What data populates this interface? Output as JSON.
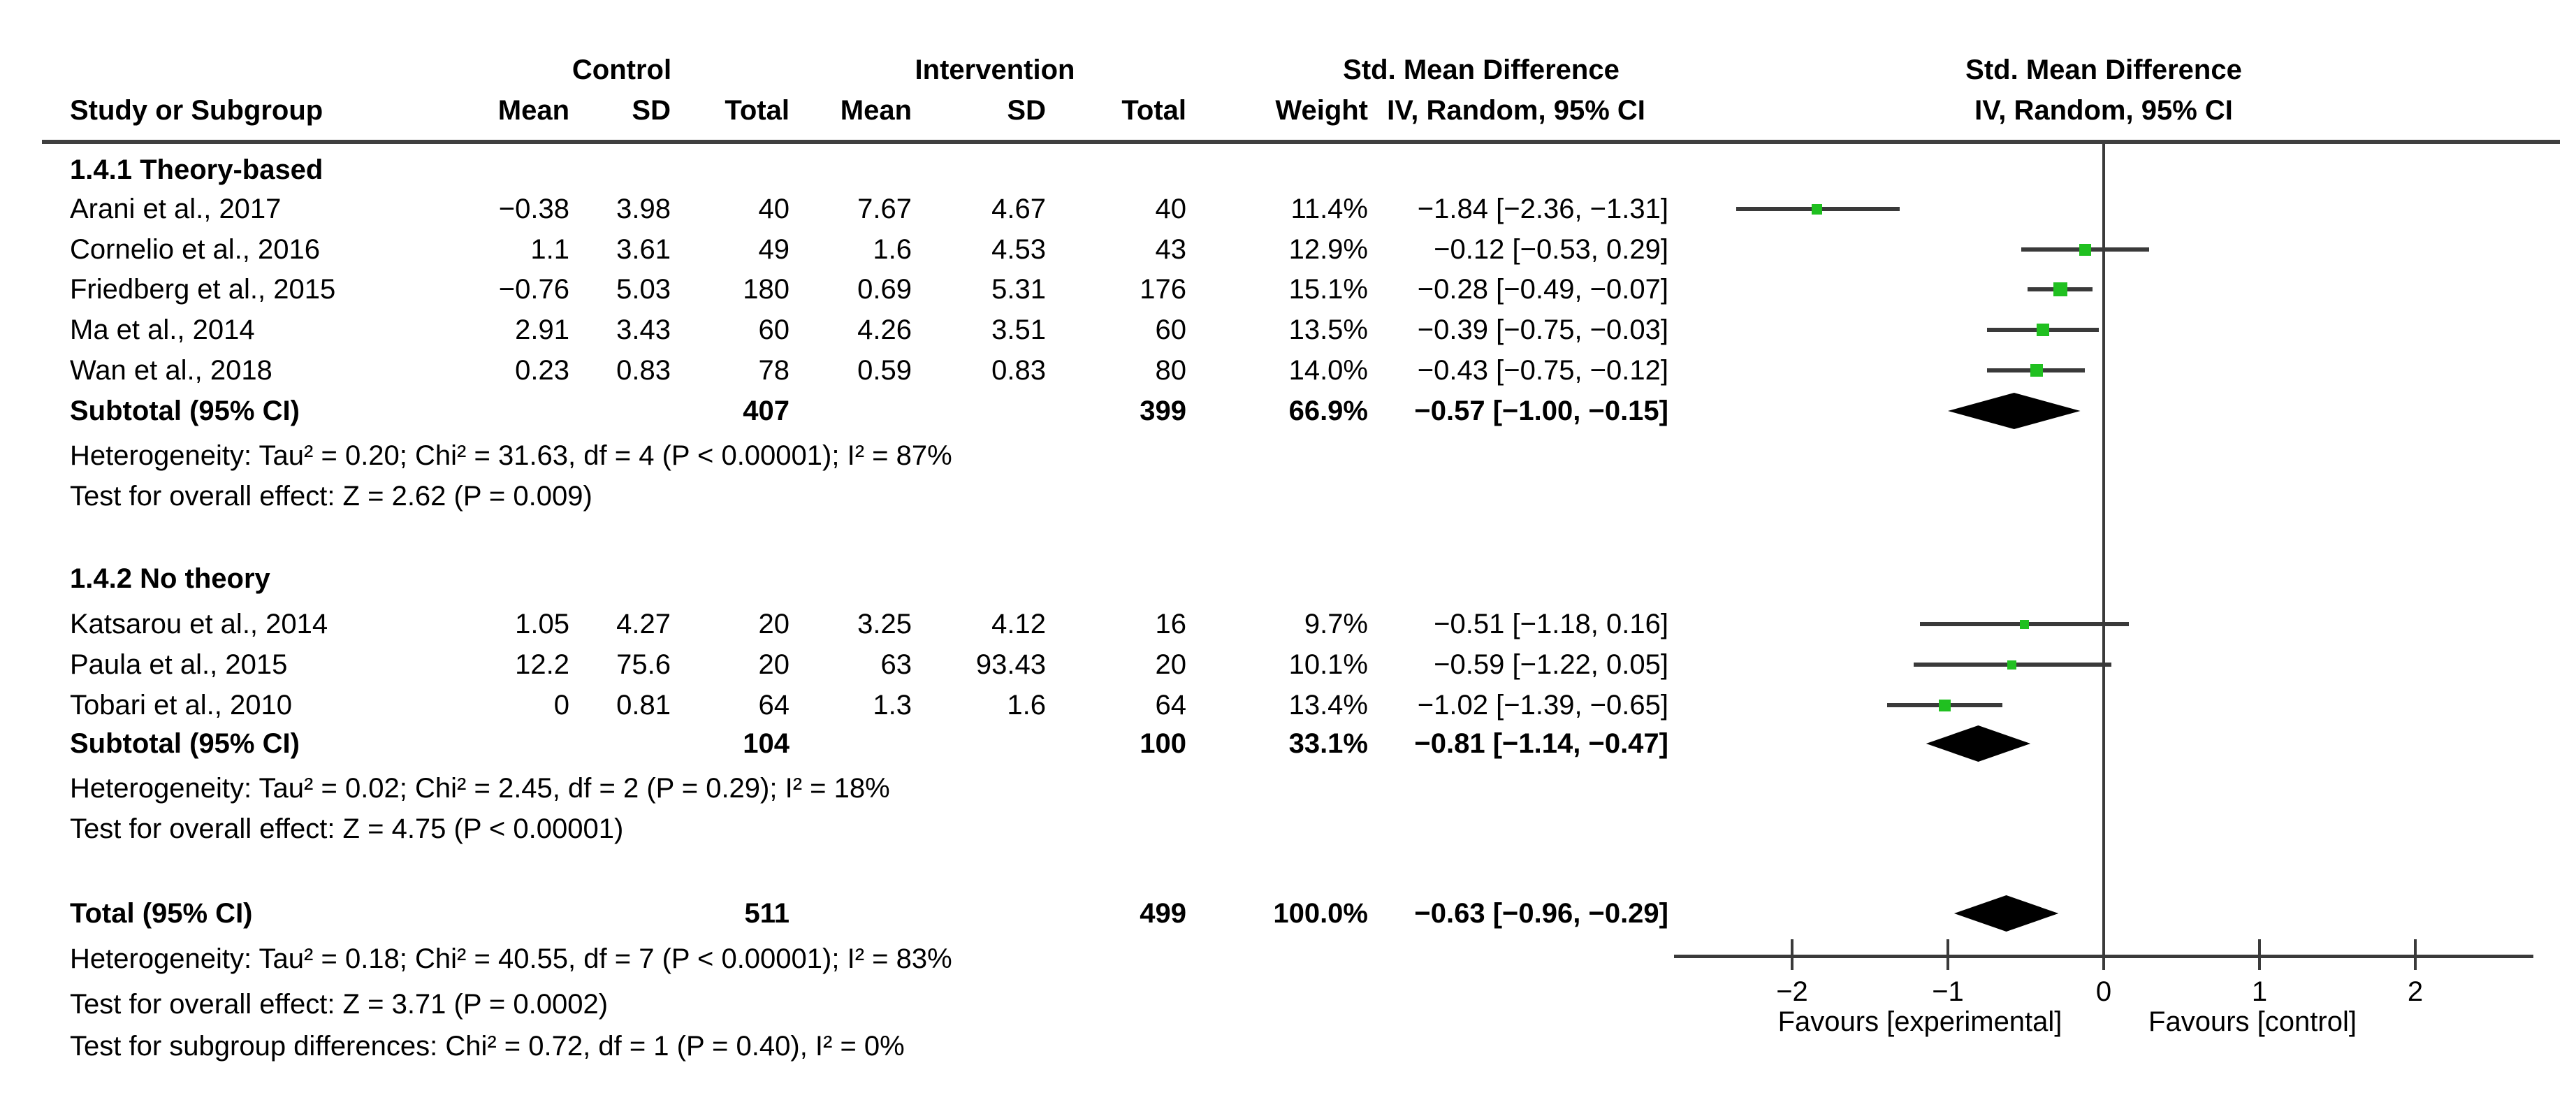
{
  "chart_data": {
    "type": "forest",
    "effect_measure": "Std. Mean Difference",
    "method": "IV, Random, 95% CI",
    "headers": {
      "study": "Study or Subgroup",
      "control": "Control",
      "intervention": "Intervention",
      "smd_table": "Std. Mean Difference",
      "smd_plot": "Std. Mean Difference",
      "mean": "Mean",
      "sd": "SD",
      "total": "Total",
      "weight": "Weight",
      "iv_random": "IV, Random, 95% CI",
      "iv_random_plot": "IV, Random, 95% CI"
    },
    "subgroups": [
      {
        "label": "1.4.1 Theory-based",
        "studies": [
          {
            "name": "Arani et al., 2017",
            "control": {
              "mean": "−0.38",
              "sd": "3.98",
              "total": "40"
            },
            "intervention": {
              "mean": "7.67",
              "sd": "4.67",
              "total": "40"
            },
            "weight": "11.4%",
            "weight_pct": 11.4,
            "smd": -1.84,
            "ci_low": -2.36,
            "ci_high": -1.31,
            "ci_text": "−1.84 [−2.36, −1.31]"
          },
          {
            "name": "Cornelio et al., 2016",
            "control": {
              "mean": "1.1",
              "sd": "3.61",
              "total": "49"
            },
            "intervention": {
              "mean": "1.6",
              "sd": "4.53",
              "total": "43"
            },
            "weight": "12.9%",
            "weight_pct": 12.9,
            "smd": -0.12,
            "ci_low": -0.53,
            "ci_high": 0.29,
            "ci_text": "−0.12 [−0.53, 0.29]"
          },
          {
            "name": "Friedberg et al., 2015",
            "control": {
              "mean": "−0.76",
              "sd": "5.03",
              "total": "180"
            },
            "intervention": {
              "mean": "0.69",
              "sd": "5.31",
              "total": "176"
            },
            "weight": "15.1%",
            "weight_pct": 15.1,
            "smd": -0.28,
            "ci_low": -0.49,
            "ci_high": -0.07,
            "ci_text": "−0.28 [−0.49, −0.07]"
          },
          {
            "name": "Ma et al., 2014",
            "control": {
              "mean": "2.91",
              "sd": "3.43",
              "total": "60"
            },
            "intervention": {
              "mean": "4.26",
              "sd": "3.51",
              "total": "60"
            },
            "weight": "13.5%",
            "weight_pct": 13.5,
            "smd": -0.39,
            "ci_low": -0.75,
            "ci_high": -0.03,
            "ci_text": "−0.39 [−0.75, −0.03]"
          },
          {
            "name": "Wan et al., 2018",
            "control": {
              "mean": "0.23",
              "sd": "0.83",
              "total": "78"
            },
            "intervention": {
              "mean": "0.59",
              "sd": "0.83",
              "total": "80"
            },
            "weight": "14.0%",
            "weight_pct": 14.0,
            "smd": -0.43,
            "ci_low": -0.75,
            "ci_high": -0.12,
            "ci_text": "−0.43 [−0.75, −0.12]"
          }
        ],
        "subtotal": {
          "label": "Subtotal (95% CI)",
          "control_total": "407",
          "intervention_total": "399",
          "weight": "66.9%",
          "smd": -0.57,
          "ci_low": -1.0,
          "ci_high": -0.15,
          "ci_text": "−0.57 [−1.00, −0.15]"
        },
        "heterogeneity": "Heterogeneity: Tau² = 0.20; Chi² = 31.63, df = 4 (P < 0.00001); I² = 87%",
        "overall_effect": "Test for overall effect: Z = 2.62 (P = 0.009)"
      },
      {
        "label": "1.4.2 No theory",
        "studies": [
          {
            "name": "Katsarou et al., 2014",
            "control": {
              "mean": "1.05",
              "sd": "4.27",
              "total": "20"
            },
            "intervention": {
              "mean": "3.25",
              "sd": "4.12",
              "total": "16"
            },
            "weight": "9.7%",
            "weight_pct": 9.7,
            "smd": -0.51,
            "ci_low": -1.18,
            "ci_high": 0.16,
            "ci_text": "−0.51 [−1.18, 0.16]"
          },
          {
            "name": "Paula et al., 2015",
            "control": {
              "mean": "12.2",
              "sd": "75.6",
              "total": "20"
            },
            "intervention": {
              "mean": "63",
              "sd": "93.43",
              "total": "20"
            },
            "weight": "10.1%",
            "weight_pct": 10.1,
            "smd": -0.59,
            "ci_low": -1.22,
            "ci_high": 0.05,
            "ci_text": "−0.59 [−1.22, 0.05]"
          },
          {
            "name": "Tobari et al., 2010",
            "control": {
              "mean": "0",
              "sd": "0.81",
              "total": "64"
            },
            "intervention": {
              "mean": "1.3",
              "sd": "1.6",
              "total": "64"
            },
            "weight": "13.4%",
            "weight_pct": 13.4,
            "smd": -1.02,
            "ci_low": -1.39,
            "ci_high": -0.65,
            "ci_text": "−1.02 [−1.39, −0.65]"
          }
        ],
        "subtotal": {
          "label": "Subtotal (95% CI)",
          "control_total": "104",
          "intervention_total": "100",
          "weight": "33.1%",
          "smd": -0.81,
          "ci_low": -1.14,
          "ci_high": -0.47,
          "ci_text": "−0.81 [−1.14, −0.47]"
        },
        "heterogeneity": "Heterogeneity: Tau² = 0.02; Chi² = 2.45, df = 2 (P = 0.29); I² = 18%",
        "overall_effect": "Test for overall effect: Z = 4.75 (P < 0.00001)"
      }
    ],
    "total": {
      "label": "Total (95% CI)",
      "control_total": "511",
      "intervention_total": "499",
      "weight": "100.0%",
      "smd": -0.63,
      "ci_low": -0.96,
      "ci_high": -0.29,
      "ci_text": "−0.63 [−0.96, −0.29]",
      "heterogeneity": "Heterogeneity: Tau² = 0.18; Chi² = 40.55, df = 7 (P < 0.00001); I² = 83%",
      "overall_effect": "Test for overall effect: Z = 3.71 (P = 0.0002)",
      "subgroup_differences": "Test for subgroup differences: Chi² = 0.72, df = 1 (P = 0.40), I² = 0%"
    },
    "axis": {
      "ticks": [
        {
          "value": -2,
          "label": "−2"
        },
        {
          "value": -1,
          "label": "−1"
        },
        {
          "value": 0,
          "label": "0"
        },
        {
          "value": 1,
          "label": "1"
        },
        {
          "value": 2,
          "label": "2"
        }
      ],
      "range": [
        -2.76,
        2.76
      ],
      "favours_left": "Favours [experimental]",
      "favours_right": "Favours [control]"
    },
    "colors": {
      "point_square": "#20c020",
      "ci_line": "#3a3a3a",
      "diamond": "#000000",
      "rule": "#3f3f3f"
    }
  }
}
